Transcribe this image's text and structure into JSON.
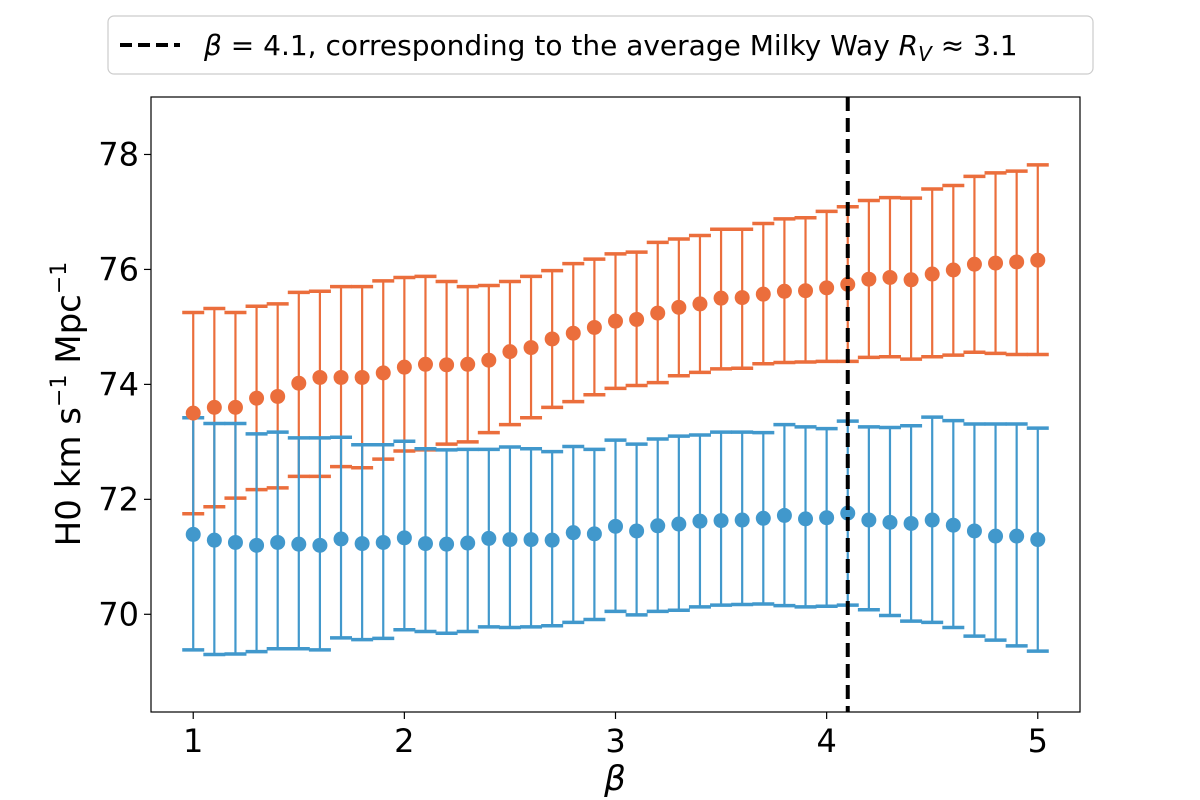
{
  "chart_data": {
    "type": "scatter",
    "title": "",
    "xlabel": "β",
    "ylabel": "H0 km s⁻¹ Mpc⁻¹",
    "ylabel_parts": {
      "main": "H0 km s",
      "exp1": "−1",
      "mid": " Mpc",
      "exp2": "−1"
    },
    "xlim": [
      0.8,
      5.2
    ],
    "ylim": [
      68.3,
      79.0
    ],
    "xticks": [
      1,
      2,
      3,
      4,
      5
    ],
    "yticks": [
      70,
      72,
      74,
      76,
      78
    ],
    "grid": false,
    "x": [
      1.0,
      1.1,
      1.2,
      1.3,
      1.4,
      1.5,
      1.6,
      1.7,
      1.8,
      1.9,
      2.0,
      2.1,
      2.2,
      2.3,
      2.4,
      2.5,
      2.6,
      2.7,
      2.8,
      2.9,
      3.0,
      3.1,
      3.2,
      3.3,
      3.4,
      3.5,
      3.6,
      3.7,
      3.8,
      3.9,
      4.0,
      4.1,
      4.2,
      4.3,
      4.4,
      4.5,
      4.6,
      4.7,
      4.8,
      4.9,
      5.0
    ],
    "series": [
      {
        "name": "orange",
        "color": "#EB6E3C",
        "values": [
          73.5,
          73.6,
          73.6,
          73.76,
          73.79,
          74.02,
          74.12,
          74.12,
          74.12,
          74.2,
          74.3,
          74.35,
          74.34,
          74.35,
          74.42,
          74.57,
          74.64,
          74.79,
          74.89,
          74.99,
          75.1,
          75.13,
          75.24,
          75.34,
          75.4,
          75.5,
          75.51,
          75.57,
          75.62,
          75.63,
          75.68,
          75.74,
          75.83,
          75.86,
          75.82,
          75.92,
          75.99,
          76.09,
          76.11,
          76.13,
          76.16
        ],
        "upper": [
          75.25,
          75.32,
          75.25,
          75.36,
          75.4,
          75.6,
          75.62,
          75.7,
          75.7,
          75.8,
          75.86,
          75.88,
          75.79,
          75.7,
          75.72,
          75.79,
          75.88,
          75.98,
          76.1,
          76.18,
          76.27,
          76.3,
          76.47,
          76.53,
          76.59,
          76.7,
          76.7,
          76.8,
          76.88,
          76.9,
          77.01,
          77.09,
          77.2,
          77.25,
          77.24,
          77.4,
          77.46,
          77.62,
          77.68,
          77.71,
          77.82
        ],
        "lower": [
          71.75,
          71.87,
          72.02,
          72.17,
          72.2,
          72.4,
          72.4,
          72.57,
          72.55,
          72.7,
          72.84,
          72.86,
          72.96,
          73.0,
          73.16,
          73.3,
          73.42,
          73.6,
          73.7,
          73.82,
          73.93,
          73.98,
          74.03,
          74.15,
          74.21,
          74.27,
          74.28,
          74.36,
          74.38,
          74.39,
          74.4,
          74.4,
          74.47,
          74.48,
          74.44,
          74.48,
          74.51,
          74.56,
          74.54,
          74.52,
          74.52
        ]
      },
      {
        "name": "blue",
        "color": "#4198CC",
        "values": [
          71.39,
          71.29,
          71.25,
          71.2,
          71.25,
          71.22,
          71.2,
          71.31,
          71.23,
          71.25,
          71.33,
          71.23,
          71.22,
          71.24,
          71.32,
          71.3,
          71.3,
          71.29,
          71.42,
          71.4,
          71.53,
          71.45,
          71.54,
          71.57,
          71.62,
          71.63,
          71.64,
          71.67,
          71.72,
          71.66,
          71.68,
          71.76,
          71.64,
          71.6,
          71.58,
          71.64,
          71.55,
          71.45,
          71.36,
          71.36,
          71.3
        ],
        "upper": [
          73.42,
          73.32,
          73.32,
          73.14,
          73.17,
          73.07,
          73.07,
          73.08,
          72.95,
          72.95,
          73.01,
          72.88,
          72.86,
          72.87,
          72.87,
          72.91,
          72.88,
          72.83,
          72.92,
          72.87,
          73.03,
          72.96,
          73.05,
          73.1,
          73.12,
          73.17,
          73.17,
          73.16,
          73.3,
          73.26,
          73.23,
          73.36,
          73.26,
          73.25,
          73.28,
          73.43,
          73.37,
          73.31,
          73.31,
          73.31,
          73.24
        ],
        "lower": [
          69.38,
          69.3,
          69.31,
          69.35,
          69.4,
          69.4,
          69.38,
          69.59,
          69.56,
          69.58,
          69.73,
          69.7,
          69.67,
          69.7,
          69.78,
          69.77,
          69.78,
          69.8,
          69.86,
          69.91,
          70.05,
          69.99,
          70.05,
          70.07,
          70.13,
          70.16,
          70.17,
          70.18,
          70.15,
          70.13,
          70.14,
          70.16,
          70.08,
          69.98,
          69.88,
          69.86,
          69.77,
          69.62,
          69.55,
          69.45,
          69.36
        ]
      }
    ],
    "vline": {
      "x": 4.1,
      "style": "dashed",
      "color": "#000000"
    },
    "legend": {
      "placement": "top-center, outside plot",
      "entries": [
        {
          "style": "dashed-black",
          "label_parts": {
            "beta": "β",
            "eq": " = 4.1, corresponding to the average Milky Way ",
            "rv": "R",
            "rv_sub": "V",
            "approx": " ≈ 3.1"
          }
        }
      ]
    }
  }
}
